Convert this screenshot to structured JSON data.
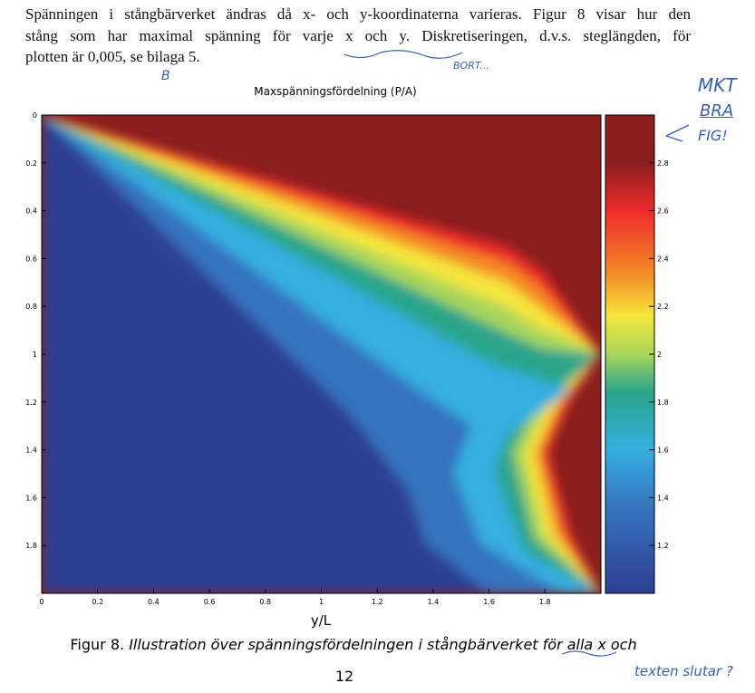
{
  "paragraph": {
    "lines": [
      "Spänningen i stångbärverket ändras då x- och y-koordinaterna varieras. Figur 8 visar hur den",
      "stång som har maximal spänning för varje x och y. Diskretiseringen, d.v.s. steglängden, för",
      "plotten är 0,005, se bilaga 5."
    ]
  },
  "annotations": {
    "b": "B",
    "bort": "BORT...",
    "mkt": "MKT",
    "bra": "BRA",
    "fig": "FIG!",
    "texten": "texten slutar ?"
  },
  "figure": {
    "title": "Maxspänningsfördelning (P/A)",
    "xlabel": "y/L",
    "xlim": [
      0,
      2
    ],
    "ylim": [
      0,
      2
    ],
    "xticks": [
      0,
      0.2,
      0.4,
      0.6,
      0.8,
      1,
      1.2,
      1.4,
      1.6,
      1.8
    ],
    "yticks": [
      0,
      0.2,
      0.4,
      0.6,
      0.8,
      1,
      1.2,
      1.4,
      1.6,
      1.8
    ],
    "colorbar": {
      "lim": [
        1,
        3
      ],
      "ticks": [
        1.2,
        1.4,
        1.6,
        1.8,
        2,
        2.2,
        2.4,
        2.6,
        2.8
      ]
    }
  },
  "caption": {
    "label": "Figur 8.",
    "text": "Illustration över spänningsfördelningen i stångbärverket för alla x och"
  },
  "page_number": "12"
}
